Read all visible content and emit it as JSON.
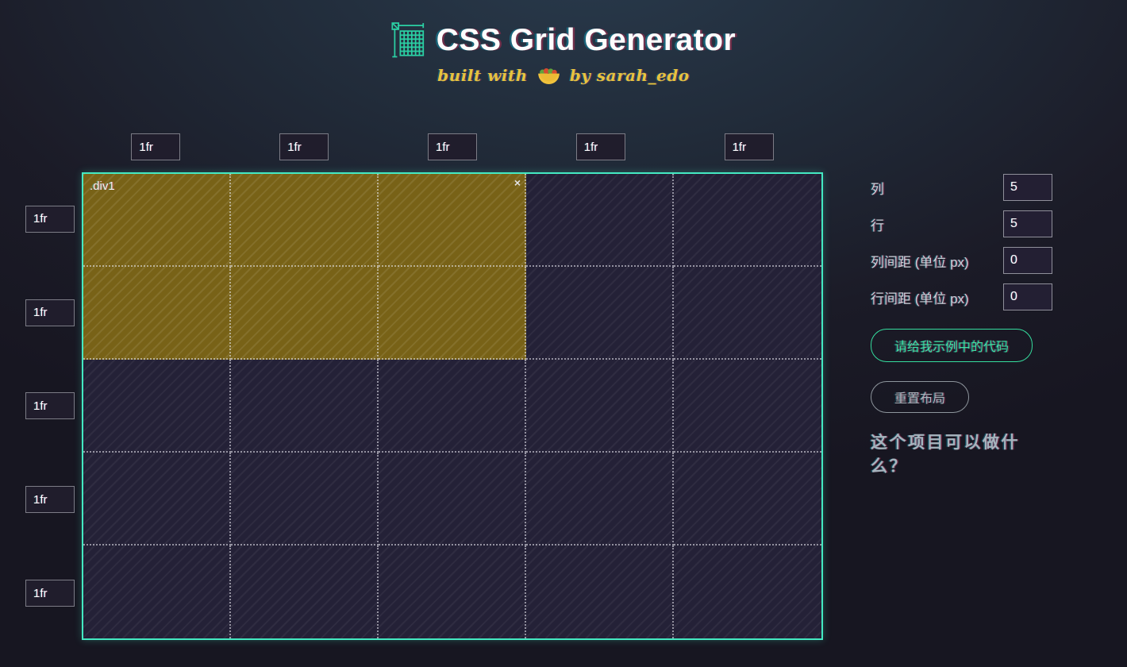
{
  "colors": {
    "accent": "#44e9c2",
    "selection": "#786217",
    "cellbg": "#242137",
    "subtitle": "#e6c33e"
  },
  "header": {
    "title": "CSS Grid Generator",
    "subtitle_prefix": "built with",
    "subtitle_suffix": "by sarah_edo"
  },
  "grid": {
    "columns": 5,
    "rows": 5,
    "col_tracks": [
      "1fr",
      "1fr",
      "1fr",
      "1fr",
      "1fr"
    ],
    "row_tracks": [
      "1fr",
      "1fr",
      "1fr",
      "1fr",
      "1fr"
    ],
    "selection": {
      "label": ".div1",
      "close_label": "×",
      "col_start": 1,
      "col_span": 3,
      "row_start": 1,
      "row_span": 2
    }
  },
  "sidebar": {
    "controls": [
      {
        "label": "列",
        "value": "5"
      },
      {
        "label": "行",
        "value": "5"
      },
      {
        "label": "列间距 (单位 px)",
        "value": "0"
      },
      {
        "label": "行间距 (单位 px)",
        "value": "0"
      }
    ],
    "code_button": "请给我示例中的代码",
    "reset_button": "重置布局",
    "about_link": "这个项目可以做什么？"
  }
}
